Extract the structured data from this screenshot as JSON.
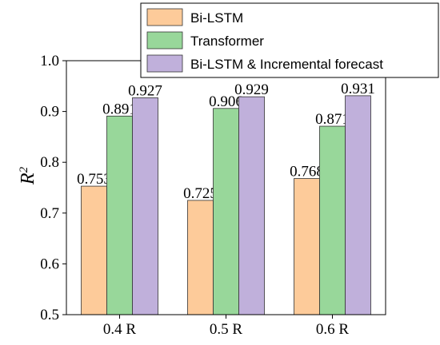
{
  "chart_data": {
    "type": "bar",
    "categories": [
      "0.4 R",
      "0.5 R",
      "0.6 R"
    ],
    "series": [
      {
        "name": "Bi-LSTM",
        "color": "#FDCB9A",
        "values": [
          0.753,
          0.725,
          0.768
        ],
        "labels": [
          "0.753",
          "0.725",
          "0.768"
        ]
      },
      {
        "name": "Transformer",
        "color": "#98D79A",
        "values": [
          0.891,
          0.906,
          0.871
        ],
        "labels": [
          "0.891",
          "0.906",
          "0.871"
        ]
      },
      {
        "name": "Bi-LSTM & Incremental forecast",
        "color": "#C0B0DB",
        "values": [
          0.927,
          0.929,
          0.931
        ],
        "labels": [
          "0.927",
          "0.929",
          "0.931"
        ]
      }
    ],
    "ylabel": "R",
    "ylabel_superscript": "2",
    "xlabel": "",
    "ylim": [
      0.5,
      1.0
    ],
    "yticks": [
      "0.5",
      "0.6",
      "0.7",
      "0.8",
      "0.9",
      "1.0"
    ],
    "grid": false,
    "legend_position": "top"
  }
}
